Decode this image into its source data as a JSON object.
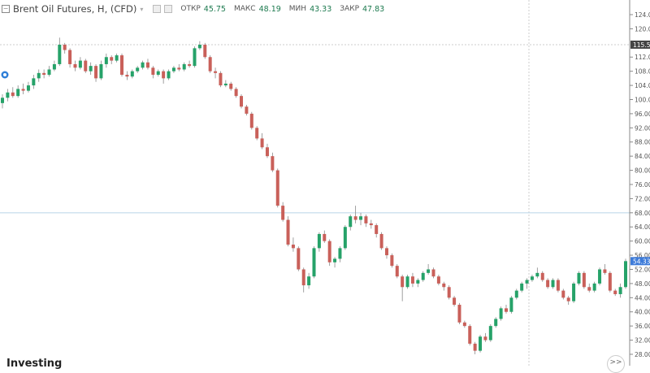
{
  "header": {
    "title": "Brent Oil Futures, H, (CFD)",
    "open_label": "ОТКР",
    "open": "45.75",
    "high_label": "МАКС",
    "high": "48.19",
    "low_label": "МИН",
    "low": "43.33",
    "close_label": "ЗАКР",
    "close": "47.83"
  },
  "footer": {
    "logo": "Investing",
    "scroll_button": ">>"
  },
  "colors": {
    "up": "#26a269",
    "down": "#c9605a",
    "grid_dash": "#cccccc",
    "crosshair": "#b8d4e8",
    "last_price_bg": "#3d7bd9",
    "marker_bg": "#444444"
  },
  "chart_data": {
    "type": "candlestick",
    "title": "Brent Oil Futures, H, (CFD)",
    "ylim": [
      26,
      126
    ],
    "y_ticks": [
      "124.00",
      "120.00",
      "112.00",
      "108.00",
      "104.00",
      "100.00",
      "96.00",
      "92.00",
      "88.00",
      "84.00",
      "80.00",
      "76.00",
      "72.00",
      "68.00",
      "64.00",
      "60.00",
      "56.00",
      "52.00",
      "48.00",
      "44.00",
      "40.00",
      "36.00",
      "32.00",
      "28.00"
    ],
    "y_tick_values": [
      124,
      120,
      112,
      108,
      104,
      100,
      96,
      92,
      88,
      84,
      80,
      76,
      72,
      68,
      64,
      60,
      56,
      52,
      48,
      44,
      40,
      36,
      32,
      28
    ],
    "marker_line": {
      "value": 115.51,
      "label": "115.51"
    },
    "last_price": {
      "value": 54.33,
      "label": "54.33"
    },
    "crosshair_value": 68,
    "candles": [
      [
        99,
        101.5,
        97.5,
        100.5
      ],
      [
        100.5,
        103,
        99.5,
        102
      ],
      [
        102,
        103.5,
        100.5,
        101
      ],
      [
        101,
        104,
        100.5,
        103
      ],
      [
        103,
        104.5,
        101.5,
        102.5
      ],
      [
        102.5,
        105,
        102,
        104
      ],
      [
        104,
        107,
        103,
        106
      ],
      [
        106,
        108.5,
        105,
        107.5
      ],
      [
        107.5,
        108.5,
        106,
        107
      ],
      [
        107,
        109.5,
        106.5,
        108.5
      ],
      [
        108.5,
        111,
        108,
        110
      ],
      [
        110,
        117.5,
        109.5,
        115.5
      ],
      [
        115.5,
        116,
        113,
        114
      ],
      [
        114,
        114.5,
        109,
        110
      ],
      [
        110,
        111,
        108,
        109
      ],
      [
        109,
        112,
        108.5,
        111
      ],
      [
        111,
        111.5,
        107.5,
        108
      ],
      [
        108,
        110.5,
        107,
        109.5
      ],
      [
        109.5,
        110,
        105,
        106
      ],
      [
        106,
        111,
        105.5,
        110
      ],
      [
        110,
        113,
        109,
        112
      ],
      [
        112,
        112.5,
        110,
        111
      ],
      [
        111,
        113,
        110.5,
        112.5
      ],
      [
        112.5,
        113,
        106.5,
        107
      ],
      [
        107,
        108,
        105.5,
        106.5
      ],
      [
        106.5,
        108.5,
        106,
        108
      ],
      [
        108,
        109.5,
        107.5,
        109
      ],
      [
        109,
        111,
        108.5,
        110.5
      ],
      [
        110.5,
        111.5,
        108.5,
        109
      ],
      [
        109,
        109.5,
        106,
        107
      ],
      [
        107,
        108.5,
        106.5,
        108
      ],
      [
        108,
        108.5,
        104.5,
        106
      ],
      [
        106,
        108.5,
        105.5,
        108
      ],
      [
        108,
        109.5,
        107.5,
        109
      ],
      [
        109,
        110,
        108,
        108.5
      ],
      [
        108.5,
        110.5,
        108,
        110
      ],
      [
        110,
        111,
        109,
        109.5
      ],
      [
        109.5,
        115,
        109,
        114.5
      ],
      [
        114.5,
        116.5,
        114,
        115.5
      ],
      [
        115.5,
        116,
        111.5,
        112
      ],
      [
        112,
        112.5,
        107.5,
        108
      ],
      [
        108,
        109,
        106,
        107.5
      ],
      [
        107.5,
        108,
        103.5,
        104
      ],
      [
        104,
        105.5,
        103.5,
        104.5
      ],
      [
        104.5,
        105,
        102.5,
        103
      ],
      [
        103,
        103.5,
        100.5,
        101
      ],
      [
        101,
        101.5,
        97.5,
        98
      ],
      [
        98,
        98.5,
        95.5,
        96
      ],
      [
        96,
        96.5,
        91.5,
        92
      ],
      [
        92,
        92.5,
        88.5,
        89
      ],
      [
        89,
        90.5,
        86,
        86.5
      ],
      [
        86.5,
        87.5,
        83.5,
        84
      ],
      [
        84,
        85,
        79.5,
        80
      ],
      [
        80,
        80.5,
        69.5,
        70
      ],
      [
        70,
        71,
        65.5,
        66
      ],
      [
        66,
        67,
        58.5,
        59
      ],
      [
        59,
        61,
        57,
        58
      ],
      [
        58,
        58.5,
        51.5,
        52
      ],
      [
        52,
        52.5,
        45.5,
        47.5
      ],
      [
        47.5,
        51,
        46.5,
        50
      ],
      [
        50,
        58.5,
        49.5,
        58
      ],
      [
        58,
        62.5,
        57,
        62
      ],
      [
        62,
        63,
        59.5,
        60
      ],
      [
        60,
        60.5,
        53,
        54
      ],
      [
        54,
        55.5,
        52.5,
        55
      ],
      [
        55,
        58.5,
        54,
        58
      ],
      [
        58,
        64.5,
        57.5,
        64
      ],
      [
        64,
        67.5,
        63,
        67
      ],
      [
        67,
        70,
        65,
        66
      ],
      [
        66,
        68,
        64.5,
        67
      ],
      [
        67,
        67.5,
        64,
        65
      ],
      [
        65,
        66,
        63.5,
        64.5
      ],
      [
        64.5,
        65,
        61,
        62
      ],
      [
        62,
        62.5,
        57.5,
        58
      ],
      [
        58,
        58.5,
        55,
        56
      ],
      [
        56,
        56.5,
        52.5,
        53
      ],
      [
        53,
        53.5,
        49.5,
        50
      ],
      [
        50,
        50.5,
        43,
        47
      ],
      [
        47,
        50.5,
        46.5,
        50
      ],
      [
        50,
        51,
        47,
        48
      ],
      [
        48,
        49.5,
        47,
        49
      ],
      [
        49,
        51.5,
        48.5,
        51
      ],
      [
        51,
        53.5,
        50.5,
        52
      ],
      [
        52,
        52.5,
        49.5,
        50
      ],
      [
        50,
        50.5,
        47.5,
        48
      ],
      [
        48,
        48.5,
        46,
        47
      ],
      [
        47,
        47.5,
        43.5,
        44
      ],
      [
        44,
        44.5,
        41.5,
        42
      ],
      [
        42,
        42.5,
        36.5,
        37
      ],
      [
        37,
        37.5,
        35.5,
        36
      ],
      [
        36,
        36.5,
        30.5,
        31
      ],
      [
        31,
        31.5,
        28,
        29
      ],
      [
        29,
        33.5,
        28.5,
        33
      ],
      [
        33,
        34,
        31.5,
        32
      ],
      [
        32,
        36.5,
        31.5,
        36
      ],
      [
        36,
        38.5,
        35.5,
        38
      ],
      [
        38,
        41.5,
        37.5,
        41
      ],
      [
        41,
        42,
        39.5,
        40
      ],
      [
        40,
        44.5,
        39.5,
        44
      ],
      [
        44,
        46.5,
        43.5,
        46
      ],
      [
        46,
        48.5,
        45.5,
        48
      ],
      [
        48,
        49.5,
        46.5,
        49
      ],
      [
        49,
        50.5,
        48.5,
        50
      ],
      [
        50,
        52.5,
        49.5,
        51
      ],
      [
        51,
        51.5,
        48.5,
        49
      ],
      [
        49,
        49.5,
        46.5,
        47
      ],
      [
        47,
        49.5,
        46.5,
        49
      ],
      [
        49,
        49.5,
        45.5,
        46
      ],
      [
        46,
        46.5,
        43.5,
        44
      ],
      [
        44,
        44.5,
        42,
        43
      ],
      [
        43,
        48.5,
        42.5,
        48
      ],
      [
        48,
        51.5,
        47.5,
        51
      ],
      [
        51,
        51.5,
        46.5,
        47
      ],
      [
        47,
        48,
        45.5,
        46
      ],
      [
        46,
        48.5,
        45.5,
        48
      ],
      [
        48,
        52.5,
        47.5,
        52
      ],
      [
        52,
        53.5,
        50.5,
        51
      ],
      [
        51,
        51.5,
        45.5,
        46
      ],
      [
        46,
        46.5,
        44.5,
        45
      ],
      [
        45,
        48,
        44,
        47
      ],
      [
        47,
        55,
        46.5,
        54.33
      ]
    ]
  }
}
